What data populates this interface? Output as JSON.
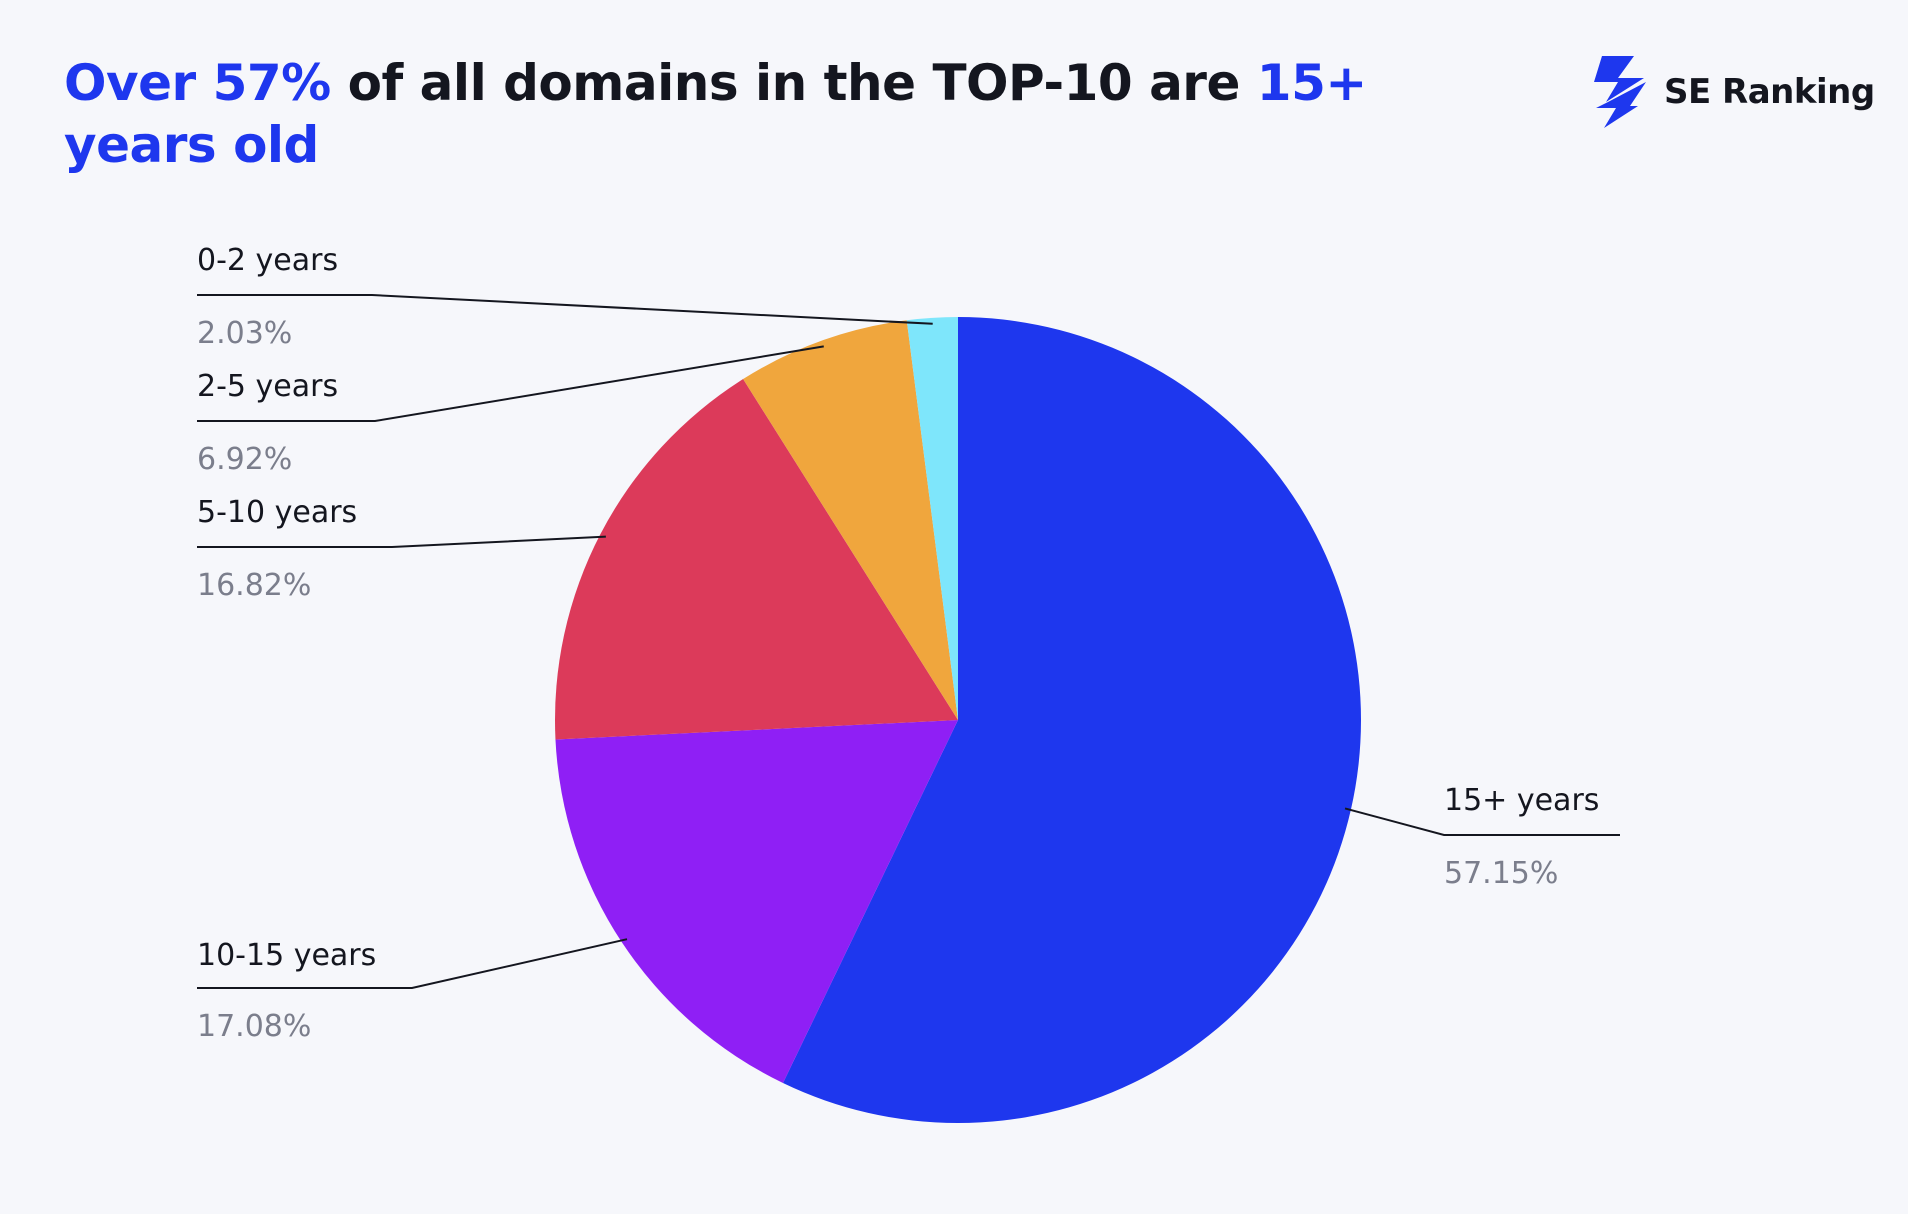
{
  "title": {
    "part1": "Over ",
    "part2": "57%",
    "part3": " of all domains in the TOP-10 are ",
    "part4": "15+ years old"
  },
  "brand": {
    "name": "SE Ranking",
    "icon": "se-ranking-logo-icon"
  },
  "colors": {
    "accent": "#1e37ee",
    "text": "#14161f",
    "muted": "#7b7e8c",
    "background": "#f6f7fb"
  },
  "chart_data": {
    "type": "pie",
    "start_angle_deg": 0,
    "direction": "clockwise",
    "legend": "none",
    "slices": [
      {
        "label": "15+ years",
        "value": 57.15,
        "display": "57.15%",
        "color": "#1e37ee"
      },
      {
        "label": "10-15 years",
        "value": 17.08,
        "display": "17.08%",
        "color": "#8f1ff5"
      },
      {
        "label": "5-10 years",
        "value": 16.82,
        "display": "16.82%",
        "color": "#dc3a5a"
      },
      {
        "label": "2-5 years",
        "value": 6.92,
        "display": "6.92%",
        "color": "#f0a63d"
      },
      {
        "label": "0-2 years",
        "value": 2.03,
        "display": "2.03%",
        "color": "#7ee6fb"
      }
    ]
  }
}
